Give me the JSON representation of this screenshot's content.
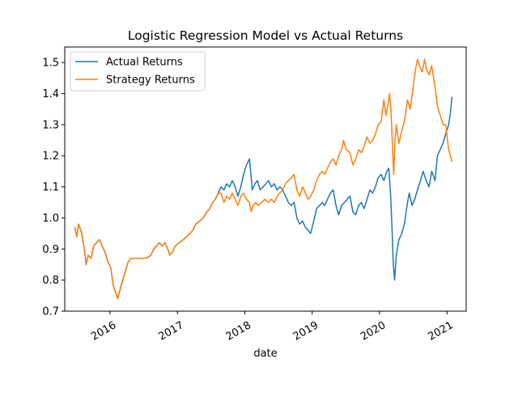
{
  "chart_data": {
    "type": "line",
    "title": "Logistic Regression Model vs Actual Returns",
    "xlabel": "date",
    "ylabel": "",
    "xlim": [
      "2015-05-01",
      "2021-04-15"
    ],
    "ylim": [
      0.7,
      1.55
    ],
    "yticks": [
      0.7,
      0.8,
      0.9,
      1.0,
      1.1,
      1.2,
      1.3,
      1.4,
      1.5
    ],
    "ytick_labels": [
      "0.7",
      "0.8",
      "0.9",
      "1.0",
      "1.1",
      "1.2",
      "1.3",
      "1.4",
      "1.5"
    ],
    "xticks": [
      "2016-01-01",
      "2017-01-01",
      "2018-01-01",
      "2019-01-01",
      "2020-01-01",
      "2021-01-01"
    ],
    "xtick_labels": [
      "2016",
      "2017",
      "2018",
      "2019",
      "2020",
      "2021"
    ],
    "grid": false,
    "legend_position": "top-left",
    "series": [
      {
        "name": "Actual Returns",
        "color": "#1f77b4",
        "points": [
          [
            "2015-06-25",
            0.97
          ],
          [
            "2015-07-05",
            0.94
          ],
          [
            "2015-07-15",
            0.98
          ],
          [
            "2015-08-01",
            0.95
          ],
          [
            "2015-08-15",
            0.9
          ],
          [
            "2015-08-25",
            0.85
          ],
          [
            "2015-09-05",
            0.88
          ],
          [
            "2015-09-20",
            0.87
          ],
          [
            "2015-10-05",
            0.91
          ],
          [
            "2015-10-20",
            0.92
          ],
          [
            "2015-11-05",
            0.93
          ],
          [
            "2015-11-20",
            0.91
          ],
          [
            "2015-12-05",
            0.89
          ],
          [
            "2015-12-20",
            0.86
          ],
          [
            "2016-01-05",
            0.84
          ],
          [
            "2016-01-20",
            0.78
          ],
          [
            "2016-02-01",
            0.76
          ],
          [
            "2016-02-12",
            0.74
          ],
          [
            "2016-02-25",
            0.77
          ],
          [
            "2016-03-10",
            0.8
          ],
          [
            "2016-03-25",
            0.83
          ],
          [
            "2016-04-10",
            0.86
          ],
          [
            "2016-04-25",
            0.87
          ],
          [
            "2016-05-15",
            0.87
          ],
          [
            "2016-06-10",
            0.87
          ],
          [
            "2016-07-15",
            0.87
          ],
          [
            "2016-08-10",
            0.88
          ],
          [
            "2016-08-25",
            0.9
          ],
          [
            "2016-09-10",
            0.91
          ],
          [
            "2016-09-25",
            0.92
          ],
          [
            "2016-10-10",
            0.91
          ],
          [
            "2016-10-25",
            0.92
          ],
          [
            "2016-11-10",
            0.9
          ],
          [
            "2016-11-20",
            0.88
          ],
          [
            "2016-12-05",
            0.89
          ],
          [
            "2016-12-20",
            0.91
          ],
          [
            "2017-01-10",
            0.92
          ],
          [
            "2017-02-01",
            0.93
          ],
          [
            "2017-02-20",
            0.94
          ],
          [
            "2017-03-10",
            0.95
          ],
          [
            "2017-03-25",
            0.96
          ],
          [
            "2017-04-10",
            0.98
          ],
          [
            "2017-05-01",
            0.99
          ],
          [
            "2017-05-20",
            1.0
          ],
          [
            "2017-06-10",
            1.02
          ],
          [
            "2017-06-25",
            1.03
          ],
          [
            "2017-07-10",
            1.05
          ],
          [
            "2017-07-25",
            1.06
          ],
          [
            "2017-08-10",
            1.08
          ],
          [
            "2017-08-25",
            1.1
          ],
          [
            "2017-09-10",
            1.09
          ],
          [
            "2017-09-25",
            1.11
          ],
          [
            "2017-10-10",
            1.1
          ],
          [
            "2017-10-25",
            1.12
          ],
          [
            "2017-11-10",
            1.1
          ],
          [
            "2017-11-25",
            1.07
          ],
          [
            "2017-12-10",
            1.1
          ],
          [
            "2017-12-25",
            1.14
          ],
          [
            "2018-01-10",
            1.17
          ],
          [
            "2018-01-26",
            1.19
          ],
          [
            "2018-02-05",
            1.13
          ],
          [
            "2018-02-10",
            1.09
          ],
          [
            "2018-02-25",
            1.11
          ],
          [
            "2018-03-10",
            1.12
          ],
          [
            "2018-03-25",
            1.09
          ],
          [
            "2018-04-10",
            1.1
          ],
          [
            "2018-04-25",
            1.11
          ],
          [
            "2018-05-10",
            1.12
          ],
          [
            "2018-05-25",
            1.1
          ],
          [
            "2018-06-10",
            1.11
          ],
          [
            "2018-06-25",
            1.09
          ],
          [
            "2018-07-10",
            1.1
          ],
          [
            "2018-07-25",
            1.09
          ],
          [
            "2018-08-10",
            1.07
          ],
          [
            "2018-08-25",
            1.05
          ],
          [
            "2018-09-10",
            1.04
          ],
          [
            "2018-09-25",
            1.05
          ],
          [
            "2018-10-10",
            1.0
          ],
          [
            "2018-10-25",
            0.98
          ],
          [
            "2018-11-10",
            0.99
          ],
          [
            "2018-11-25",
            0.97
          ],
          [
            "2018-12-10",
            0.96
          ],
          [
            "2018-12-24",
            0.95
          ],
          [
            "2019-01-10",
            0.99
          ],
          [
            "2019-01-25",
            1.03
          ],
          [
            "2019-02-10",
            1.04
          ],
          [
            "2019-02-25",
            1.05
          ],
          [
            "2019-03-10",
            1.04
          ],
          [
            "2019-03-25",
            1.06
          ],
          [
            "2019-04-10",
            1.08
          ],
          [
            "2019-04-25",
            1.09
          ],
          [
            "2019-05-10",
            1.04
          ],
          [
            "2019-05-25",
            1.01
          ],
          [
            "2019-06-10",
            1.04
          ],
          [
            "2019-06-25",
            1.05
          ],
          [
            "2019-07-10",
            1.06
          ],
          [
            "2019-07-25",
            1.07
          ],
          [
            "2019-08-10",
            1.02
          ],
          [
            "2019-08-25",
            1.01
          ],
          [
            "2019-09-10",
            1.04
          ],
          [
            "2019-09-25",
            1.05
          ],
          [
            "2019-10-10",
            1.03
          ],
          [
            "2019-10-25",
            1.06
          ],
          [
            "2019-11-10",
            1.09
          ],
          [
            "2019-11-25",
            1.08
          ],
          [
            "2019-12-10",
            1.1
          ],
          [
            "2019-12-25",
            1.13
          ],
          [
            "2020-01-10",
            1.14
          ],
          [
            "2020-01-25",
            1.12
          ],
          [
            "2020-02-10",
            1.15
          ],
          [
            "2020-02-20",
            1.16
          ],
          [
            "2020-03-01",
            1.08
          ],
          [
            "2020-03-10",
            0.95
          ],
          [
            "2020-03-16",
            0.85
          ],
          [
            "2020-03-23",
            0.8
          ],
          [
            "2020-04-01",
            0.88
          ],
          [
            "2020-04-15",
            0.93
          ],
          [
            "2020-05-01",
            0.95
          ],
          [
            "2020-05-15",
            0.98
          ],
          [
            "2020-06-01",
            1.05
          ],
          [
            "2020-06-10",
            1.08
          ],
          [
            "2020-06-25",
            1.04
          ],
          [
            "2020-07-10",
            1.06
          ],
          [
            "2020-07-25",
            1.09
          ],
          [
            "2020-08-10",
            1.12
          ],
          [
            "2020-08-25",
            1.15
          ],
          [
            "2020-09-10",
            1.12
          ],
          [
            "2020-09-25",
            1.1
          ],
          [
            "2020-10-10",
            1.15
          ],
          [
            "2020-10-28",
            1.12
          ],
          [
            "2020-11-10",
            1.2
          ],
          [
            "2020-11-25",
            1.22
          ],
          [
            "2020-12-10",
            1.24
          ],
          [
            "2020-12-25",
            1.27
          ],
          [
            "2021-01-10",
            1.3
          ],
          [
            "2021-01-20",
            1.34
          ],
          [
            "2021-01-28",
            1.39
          ]
        ]
      },
      {
        "name": "Strategy Returns",
        "color": "#ff7f0e",
        "points": [
          [
            "2015-06-25",
            0.97
          ],
          [
            "2015-07-05",
            0.94
          ],
          [
            "2015-07-15",
            0.98
          ],
          [
            "2015-08-01",
            0.95
          ],
          [
            "2015-08-15",
            0.9
          ],
          [
            "2015-08-25",
            0.85
          ],
          [
            "2015-09-05",
            0.88
          ],
          [
            "2015-09-20",
            0.87
          ],
          [
            "2015-10-05",
            0.91
          ],
          [
            "2015-10-20",
            0.92
          ],
          [
            "2015-11-05",
            0.93
          ],
          [
            "2015-11-20",
            0.91
          ],
          [
            "2015-12-05",
            0.89
          ],
          [
            "2015-12-20",
            0.86
          ],
          [
            "2016-01-05",
            0.84
          ],
          [
            "2016-01-20",
            0.78
          ],
          [
            "2016-02-01",
            0.76
          ],
          [
            "2016-02-12",
            0.74
          ],
          [
            "2016-02-25",
            0.77
          ],
          [
            "2016-03-10",
            0.8
          ],
          [
            "2016-03-25",
            0.83
          ],
          [
            "2016-04-10",
            0.86
          ],
          [
            "2016-04-25",
            0.87
          ],
          [
            "2016-05-15",
            0.87
          ],
          [
            "2016-06-10",
            0.87
          ],
          [
            "2016-07-15",
            0.87
          ],
          [
            "2016-08-10",
            0.88
          ],
          [
            "2016-08-25",
            0.9
          ],
          [
            "2016-09-10",
            0.91
          ],
          [
            "2016-09-25",
            0.92
          ],
          [
            "2016-10-10",
            0.91
          ],
          [
            "2016-10-25",
            0.92
          ],
          [
            "2016-11-10",
            0.9
          ],
          [
            "2016-11-20",
            0.88
          ],
          [
            "2016-12-05",
            0.89
          ],
          [
            "2016-12-20",
            0.91
          ],
          [
            "2017-01-10",
            0.92
          ],
          [
            "2017-02-01",
            0.93
          ],
          [
            "2017-02-20",
            0.94
          ],
          [
            "2017-03-10",
            0.95
          ],
          [
            "2017-03-25",
            0.96
          ],
          [
            "2017-04-10",
            0.98
          ],
          [
            "2017-05-01",
            0.99
          ],
          [
            "2017-05-20",
            1.0
          ],
          [
            "2017-06-10",
            1.02
          ],
          [
            "2017-06-25",
            1.03
          ],
          [
            "2017-07-10",
            1.05
          ],
          [
            "2017-07-25",
            1.06
          ],
          [
            "2017-08-10",
            1.08
          ],
          [
            "2017-08-25",
            1.08
          ],
          [
            "2017-09-10",
            1.05
          ],
          [
            "2017-09-25",
            1.07
          ],
          [
            "2017-10-10",
            1.06
          ],
          [
            "2017-10-25",
            1.08
          ],
          [
            "2017-11-10",
            1.06
          ],
          [
            "2017-11-25",
            1.04
          ],
          [
            "2017-12-10",
            1.07
          ],
          [
            "2017-12-25",
            1.08
          ],
          [
            "2018-01-10",
            1.06
          ],
          [
            "2018-01-26",
            1.05
          ],
          [
            "2018-02-05",
            1.02
          ],
          [
            "2018-02-15",
            1.04
          ],
          [
            "2018-03-01",
            1.05
          ],
          [
            "2018-03-15",
            1.04
          ],
          [
            "2018-04-01",
            1.05
          ],
          [
            "2018-04-20",
            1.06
          ],
          [
            "2018-05-10",
            1.05
          ],
          [
            "2018-05-25",
            1.06
          ],
          [
            "2018-06-10",
            1.05
          ],
          [
            "2018-06-25",
            1.07
          ],
          [
            "2018-07-10",
            1.08
          ],
          [
            "2018-07-25",
            1.09
          ],
          [
            "2018-08-10",
            1.11
          ],
          [
            "2018-08-25",
            1.12
          ],
          [
            "2018-09-10",
            1.13
          ],
          [
            "2018-09-25",
            1.14
          ],
          [
            "2018-10-10",
            1.09
          ],
          [
            "2018-10-25",
            1.07
          ],
          [
            "2018-11-10",
            1.1
          ],
          [
            "2018-11-25",
            1.08
          ],
          [
            "2018-12-10",
            1.06
          ],
          [
            "2018-12-24",
            1.07
          ],
          [
            "2019-01-10",
            1.09
          ],
          [
            "2019-01-25",
            1.12
          ],
          [
            "2019-02-10",
            1.14
          ],
          [
            "2019-02-25",
            1.15
          ],
          [
            "2019-03-10",
            1.14
          ],
          [
            "2019-03-25",
            1.16
          ],
          [
            "2019-04-10",
            1.18
          ],
          [
            "2019-04-25",
            1.19
          ],
          [
            "2019-05-10",
            1.17
          ],
          [
            "2019-05-25",
            1.2
          ],
          [
            "2019-06-10",
            1.22
          ],
          [
            "2019-06-20",
            1.25
          ],
          [
            "2019-07-05",
            1.22
          ],
          [
            "2019-07-25",
            1.21
          ],
          [
            "2019-08-10",
            1.17
          ],
          [
            "2019-08-25",
            1.19
          ],
          [
            "2019-09-10",
            1.22
          ],
          [
            "2019-09-25",
            1.21
          ],
          [
            "2019-10-10",
            1.23
          ],
          [
            "2019-10-25",
            1.26
          ],
          [
            "2019-11-10",
            1.24
          ],
          [
            "2019-11-25",
            1.25
          ],
          [
            "2019-12-10",
            1.27
          ],
          [
            "2019-12-25",
            1.3
          ],
          [
            "2020-01-10",
            1.31
          ],
          [
            "2020-01-25",
            1.38
          ],
          [
            "2020-02-05",
            1.33
          ],
          [
            "2020-02-15",
            1.36
          ],
          [
            "2020-02-25",
            1.4
          ],
          [
            "2020-03-05",
            1.32
          ],
          [
            "2020-03-12",
            1.22
          ],
          [
            "2020-03-18",
            1.14
          ],
          [
            "2020-03-25",
            1.25
          ],
          [
            "2020-04-01",
            1.3
          ],
          [
            "2020-04-15",
            1.24
          ],
          [
            "2020-05-01",
            1.28
          ],
          [
            "2020-05-15",
            1.31
          ],
          [
            "2020-06-01",
            1.38
          ],
          [
            "2020-06-15",
            1.35
          ],
          [
            "2020-07-01",
            1.42
          ],
          [
            "2020-07-15",
            1.48
          ],
          [
            "2020-07-25",
            1.51
          ],
          [
            "2020-08-10",
            1.48
          ],
          [
            "2020-08-20",
            1.47
          ],
          [
            "2020-09-01",
            1.51
          ],
          [
            "2020-09-10",
            1.48
          ],
          [
            "2020-09-25",
            1.46
          ],
          [
            "2020-10-10",
            1.49
          ],
          [
            "2020-10-28",
            1.42
          ],
          [
            "2020-11-10",
            1.36
          ],
          [
            "2020-11-25",
            1.33
          ],
          [
            "2020-12-10",
            1.3
          ],
          [
            "2020-12-25",
            1.3
          ],
          [
            "2021-01-10",
            1.22
          ],
          [
            "2021-01-20",
            1.2
          ],
          [
            "2021-01-28",
            1.18
          ]
        ]
      }
    ]
  }
}
